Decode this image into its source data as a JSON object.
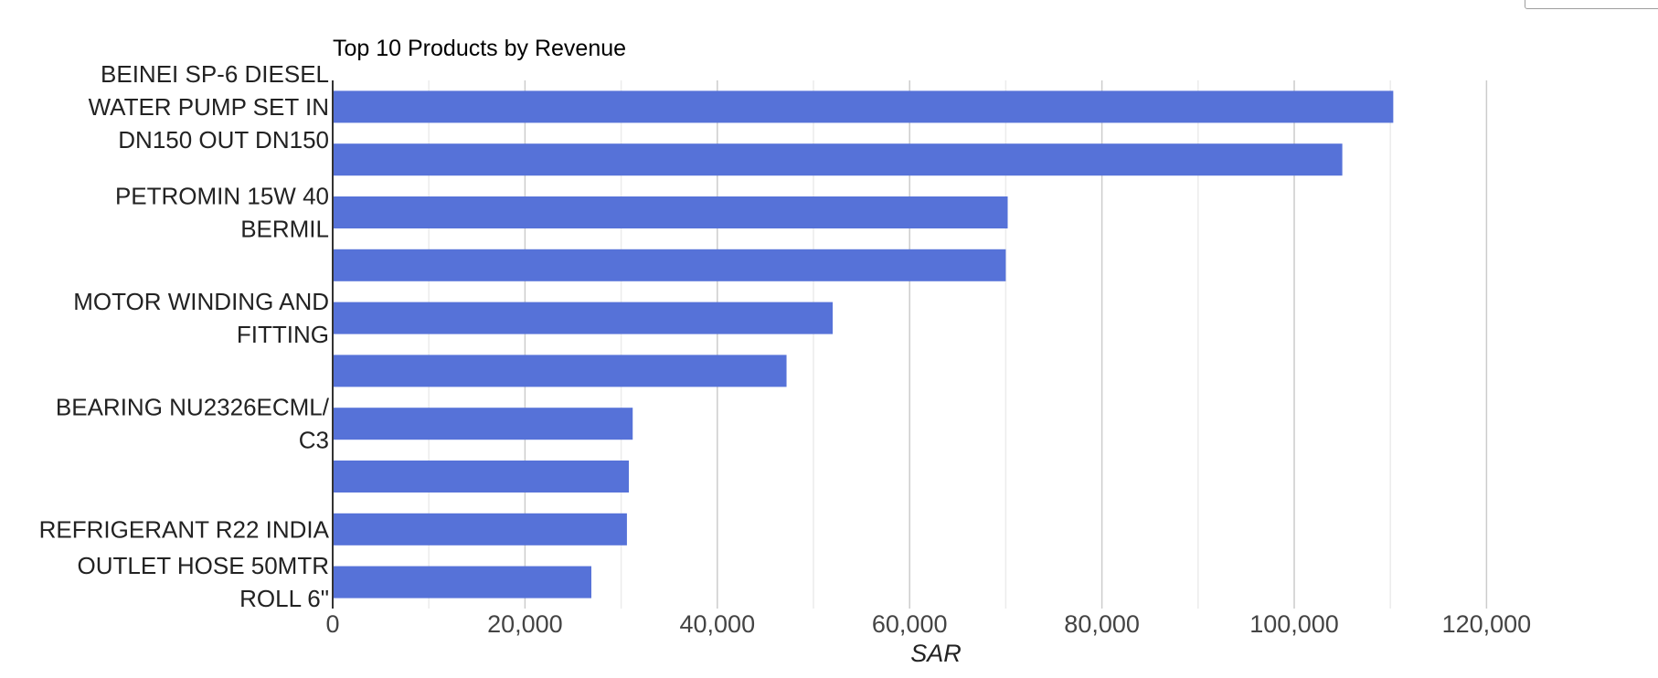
{
  "chart_data": {
    "type": "bar",
    "orientation": "horizontal",
    "title": "Top 10 Products by Revenue",
    "xlabel": "SAR",
    "ylabel": "",
    "xlim": [
      0,
      125000
    ],
    "x_ticks": [
      0,
      20000,
      40000,
      60000,
      80000,
      100000,
      120000
    ],
    "x_tick_labels": [
      "0",
      "20,000",
      "40,000",
      "60,000",
      "80,000",
      "100,000",
      "120,000"
    ],
    "grid": true,
    "bar_color": "#5672d8",
    "categories": [
      [
        "BEINEI SP-6 DIESEL",
        "WATER PUMP SET IN",
        "DN150 OUT DN150"
      ],
      [],
      [
        "PETROMIN 15W 40",
        "BERMIL"
      ],
      [],
      [
        "MOTOR WINDING AND",
        "FITTING"
      ],
      [],
      [
        "BEARING NU2326ECML/",
        "C3"
      ],
      [],
      [
        "REFRIGERANT R22 INDIA"
      ],
      [
        "OUTLET HOSE 50MTR",
        "ROLL 6\""
      ]
    ],
    "values": [
      110300,
      105000,
      70200,
      70000,
      52000,
      47200,
      31200,
      30800,
      30600,
      26900
    ]
  }
}
